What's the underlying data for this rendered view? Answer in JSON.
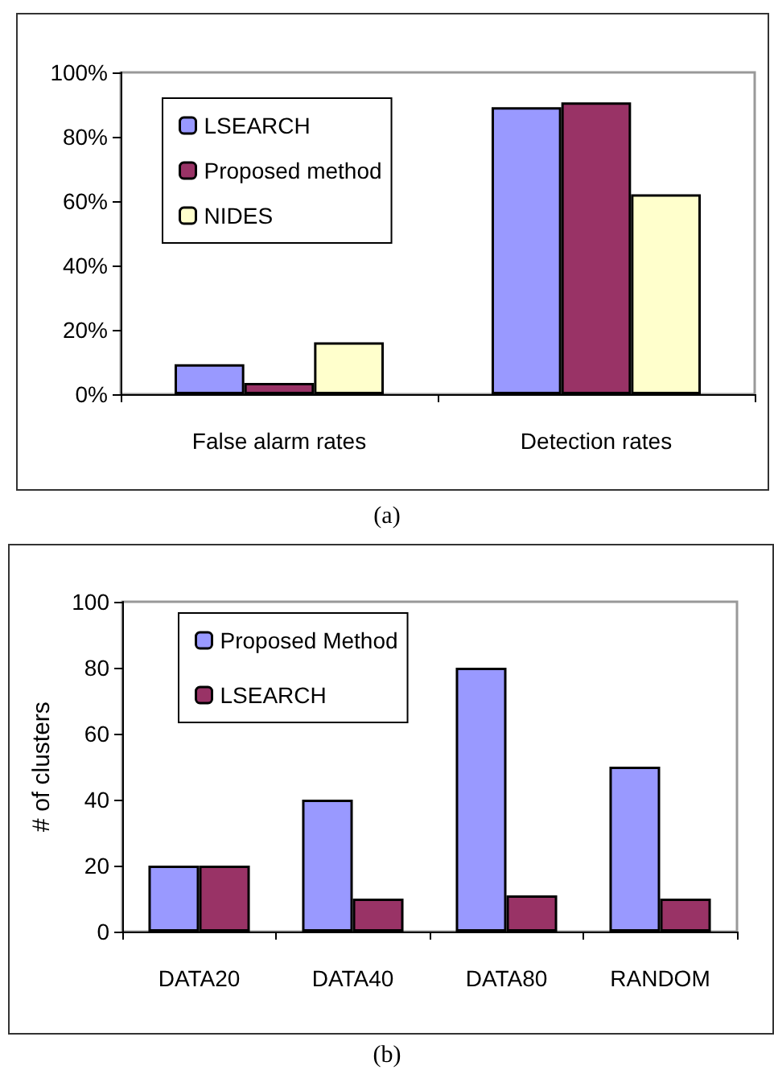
{
  "chart_data": [
    {
      "type": "bar",
      "categories": [
        "False alarm rates",
        "Detection rates"
      ],
      "series": [
        {
          "name": "LSEARCH",
          "color": "#9999ff",
          "values": [
            9.3,
            89.2
          ]
        },
        {
          "name": "Proposed method",
          "color": "#993366",
          "values": [
            3.5,
            90.7
          ]
        },
        {
          "name": "NIDES",
          "color": "#ffffcc",
          "values": [
            16.1,
            62.1
          ]
        }
      ],
      "ylim": [
        0,
        100
      ],
      "yticks": [
        {
          "value": 0,
          "label": "0%"
        },
        {
          "value": 20,
          "label": "20%"
        },
        {
          "value": 40,
          "label": "40%"
        },
        {
          "value": 60,
          "label": "60%"
        },
        {
          "value": 80,
          "label": "80%"
        },
        {
          "value": 100,
          "label": "100%"
        }
      ],
      "grid": false,
      "legend": "top left",
      "annotations": [
        "(a)"
      ]
    },
    {
      "type": "bar",
      "categories": [
        "DATA20",
        "DATA40",
        "DATA80",
        "RANDOM"
      ],
      "ylabel": "# of clusters",
      "series": [
        {
          "name": "Proposed Method",
          "color": "#9999ff",
          "values": [
            20,
            40,
            80,
            50
          ]
        },
        {
          "name": "LSEARCH",
          "color": "#993366",
          "values": [
            20,
            10,
            11,
            10
          ]
        }
      ],
      "ylim": [
        0,
        100
      ],
      "yticks": [
        0,
        20,
        40,
        60,
        80,
        100
      ],
      "grid": false,
      "legend": "top left",
      "annotations": [
        "(b)"
      ]
    }
  ]
}
